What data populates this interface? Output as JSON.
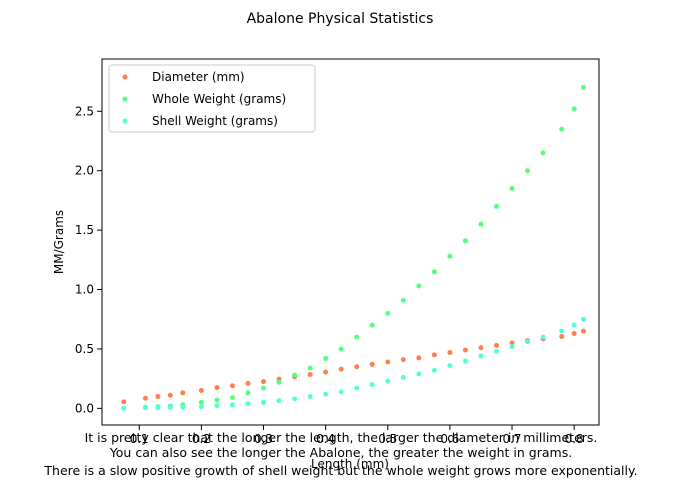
{
  "chart_data": {
    "type": "scatter",
    "title": "Abalone Physical Statistics",
    "xlabel": "Length (mm)",
    "ylabel": "MM/Grams",
    "xlim": [
      0.04,
      0.84
    ],
    "ylim": [
      -0.14,
      2.94
    ],
    "xticks": [
      0.1,
      0.2,
      0.3,
      0.4,
      0.5,
      0.6,
      0.7,
      0.8
    ],
    "yticks": [
      0.0,
      0.5,
      1.0,
      1.5,
      2.0,
      2.5
    ],
    "xtick_labels": [
      "0.1",
      "0.2",
      "0.3",
      "0.4",
      "0.5",
      "0.6",
      "0.7",
      "0.8"
    ],
    "ytick_labels": [
      "0.0",
      "0.5",
      "1.0",
      "1.5",
      "2.0",
      "2.5"
    ],
    "grid": false,
    "legend_position": "upper-left",
    "series": [
      {
        "name": "Diameter (mm)",
        "color": "#ff7f50",
        "x": [
          0.075,
          0.11,
          0.13,
          0.15,
          0.17,
          0.2,
          0.225,
          0.25,
          0.275,
          0.3,
          0.325,
          0.35,
          0.375,
          0.4,
          0.425,
          0.45,
          0.475,
          0.5,
          0.525,
          0.55,
          0.575,
          0.6,
          0.625,
          0.65,
          0.675,
          0.7,
          0.725,
          0.75,
          0.78,
          0.8,
          0.815
        ],
        "y": [
          0.055,
          0.085,
          0.1,
          0.11,
          0.13,
          0.15,
          0.175,
          0.19,
          0.21,
          0.225,
          0.245,
          0.265,
          0.285,
          0.305,
          0.33,
          0.35,
          0.37,
          0.39,
          0.41,
          0.425,
          0.45,
          0.47,
          0.49,
          0.51,
          0.53,
          0.55,
          0.57,
          0.585,
          0.605,
          0.63,
          0.65
        ]
      },
      {
        "name": "Whole Weight (grams)",
        "color": "#54ff7f",
        "x": [
          0.075,
          0.11,
          0.13,
          0.15,
          0.17,
          0.2,
          0.225,
          0.25,
          0.275,
          0.3,
          0.325,
          0.35,
          0.375,
          0.4,
          0.425,
          0.45,
          0.475,
          0.5,
          0.525,
          0.55,
          0.575,
          0.6,
          0.625,
          0.65,
          0.675,
          0.7,
          0.725,
          0.75,
          0.78,
          0.8,
          0.815
        ],
        "y": [
          0.002,
          0.01,
          0.015,
          0.02,
          0.03,
          0.05,
          0.07,
          0.09,
          0.13,
          0.17,
          0.22,
          0.28,
          0.34,
          0.42,
          0.5,
          0.6,
          0.7,
          0.8,
          0.91,
          1.03,
          1.15,
          1.28,
          1.41,
          1.55,
          1.7,
          1.85,
          2.0,
          2.15,
          2.35,
          2.52,
          2.7
        ]
      },
      {
        "name": "Shell Weight (grams)",
        "color": "#54ffd6",
        "x": [
          0.075,
          0.11,
          0.13,
          0.15,
          0.17,
          0.2,
          0.225,
          0.25,
          0.275,
          0.3,
          0.325,
          0.35,
          0.375,
          0.4,
          0.425,
          0.45,
          0.475,
          0.5,
          0.525,
          0.55,
          0.575,
          0.6,
          0.625,
          0.65,
          0.675,
          0.7,
          0.725,
          0.75,
          0.78,
          0.8,
          0.815
        ],
        "y": [
          0.001,
          0.004,
          0.005,
          0.008,
          0.01,
          0.015,
          0.022,
          0.03,
          0.04,
          0.05,
          0.065,
          0.08,
          0.1,
          0.12,
          0.14,
          0.17,
          0.2,
          0.23,
          0.26,
          0.29,
          0.32,
          0.36,
          0.4,
          0.44,
          0.48,
          0.52,
          0.56,
          0.6,
          0.65,
          0.7,
          0.75
        ]
      }
    ],
    "annotation": [
      "It is pretty clear that the longer the length, the larger the diameter in millimeters.",
      "You can also see the longer the Abalone, the greater the weight in grams.",
      "There is a slow positive growth of shell weight but the whole weight grows more exponentially."
    ]
  }
}
